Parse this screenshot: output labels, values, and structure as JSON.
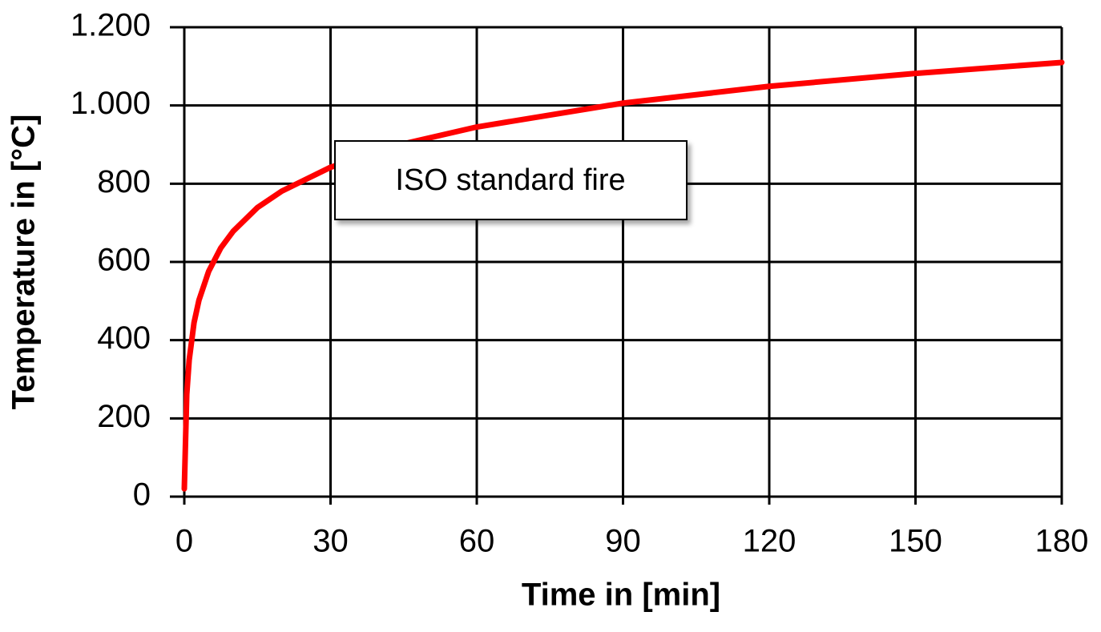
{
  "chart_data": {
    "type": "line",
    "x_label": "Time in [min]",
    "y_label": "Temperature in [°C]",
    "annotation": "ISO standard fire",
    "x": [
      0,
      0.5,
      1,
      2,
      3,
      5,
      7.5,
      10,
      15,
      20,
      30,
      45,
      60,
      90,
      120,
      150,
      180
    ],
    "series": [
      {
        "name": "ISO standard fire",
        "color": "#ff0000",
        "values": [
          20,
          261,
          349,
          445,
          502,
          576,
          636,
          678,
          739,
          781,
          842,
          902,
          945,
          1006,
          1049,
          1082,
          1110
        ]
      }
    ],
    "xlim": [
      0,
      180
    ],
    "xticks": [
      0,
      30,
      60,
      90,
      120,
      150,
      180
    ],
    "ylim": [
      0,
      1200
    ],
    "yticks": [
      0,
      200,
      400,
      600,
      800,
      {
        "value": 1000,
        "label": "1.000"
      },
      {
        "value": 1200,
        "label": "1.200"
      }
    ],
    "grid": true
  }
}
